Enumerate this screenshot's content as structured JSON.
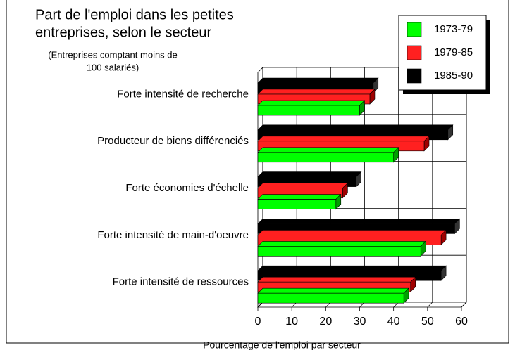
{
  "chart_data": {
    "type": "bar3d",
    "title": [
      "Part de l'emploi dans les petites",
      "entreprises, selon le secteur"
    ],
    "subtitle": [
      "(Entreprises comptant moins de",
      "100 salariés)"
    ],
    "x_label": "Pourcentage de l'emploi par secteur",
    "categories": [
      "Forte intensité de recherche",
      "Producteur de biens différenciés",
      "Forte économies d'échelle",
      "Forte intensité de main-d'oeuvre",
      "Forte intensité de ressources"
    ],
    "series": [
      {
        "name": "1973-79",
        "color": "#00ff00",
        "values": [
          30,
          40,
          23,
          48,
          43
        ]
      },
      {
        "name": "1979-85",
        "color": "#ff2020",
        "values": [
          33,
          49,
          25,
          54,
          45
        ]
      },
      {
        "name": "1985-90",
        "color": "#000000",
        "values": [
          34,
          56,
          29,
          58,
          54
        ]
      }
    ],
    "xlim": [
      0,
      60
    ],
    "xticks": [
      0,
      10,
      20,
      30,
      40,
      50,
      60
    ],
    "grid": true,
    "legend": "top-right"
  }
}
